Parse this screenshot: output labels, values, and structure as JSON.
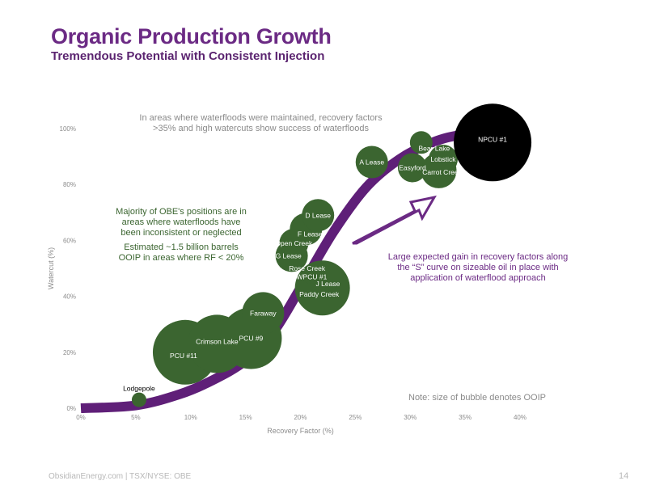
{
  "header": {
    "title": "Organic Production Growth",
    "subtitle": "Tremendous Potential with Consistent Injection"
  },
  "footer": {
    "text": "ObsidianEnergy.com | TSX/NYSE: OBE",
    "page": "14"
  },
  "colors": {
    "brand_purple": "#6b2a84",
    "curve": "#5f1f78",
    "bubble_green": "#3b6530",
    "bubble_black": "#000000",
    "axis_text": "#8c8c8c"
  },
  "annotations": {
    "top": "In areas where waterfloods were maintained, recovery factors >35% and high watercuts show success of waterfloods",
    "left_1": "Majority of OBE's positions are in areas where waterfloods have been inconsistent or neglected",
    "left_2": "Estimated ~1.5 billion barrels OOIP in areas where RF < 20%",
    "right": "Large expected gain in recovery factors along the “S” curve on sizeable oil in place with application of waterflood approach",
    "note": "Note: size of bubble denotes OOIP"
  },
  "chart_data": {
    "type": "scatter",
    "title": "",
    "xlabel": "Recovery Factor (%)",
    "ylabel": "Watercut (%)",
    "xlim": [
      0,
      40
    ],
    "ylim": [
      0,
      100
    ],
    "x_ticks": [
      "0%",
      "5%",
      "10%",
      "15%",
      "20%",
      "25%",
      "30%",
      "35%",
      "40%"
    ],
    "y_ticks": [
      "0%",
      "20%",
      "40%",
      "60%",
      "80%",
      "100%"
    ],
    "grid": false,
    "s_curve": [
      [
        0,
        0
      ],
      [
        5,
        1
      ],
      [
        9,
        5
      ],
      [
        12,
        10
      ],
      [
        15,
        17
      ],
      [
        17.5,
        27
      ],
      [
        20,
        43
      ],
      [
        23,
        63
      ],
      [
        26,
        79
      ],
      [
        29,
        89
      ],
      [
        32,
        95
      ],
      [
        35,
        98
      ],
      [
        40,
        100
      ]
    ],
    "bubbles": [
      {
        "name": "Lodgepole",
        "x": 5.3,
        "y": 3,
        "r": 9,
        "color": "#3b6530",
        "label_dx": 0,
        "label_dy": -14,
        "label_color": "#000000"
      },
      {
        "name": "PCU #11",
        "x": 9.5,
        "y": 20,
        "r": 40,
        "color": "#3b6530",
        "label_dx": -2,
        "label_dy": 4,
        "label_color": "#ffffff"
      },
      {
        "name": "Crimson Lake",
        "x": 12.4,
        "y": 23,
        "r": 36,
        "color": "#3b6530",
        "label_dx": 0,
        "label_dy": -3,
        "label_color": "#ffffff"
      },
      {
        "name": "PCU #9",
        "x": 15.5,
        "y": 25,
        "r": 38,
        "color": "#3b6530",
        "label_dx": 0,
        "label_dy": 0,
        "label_color": "#ffffff"
      },
      {
        "name": "Faraway",
        "x": 16.6,
        "y": 34,
        "r": 26,
        "color": "#3b6530",
        "label_dx": 0,
        "label_dy": 0,
        "label_color": "#ffffff"
      },
      {
        "name": "Paddy Creek",
        "x": 22,
        "y": 43,
        "r": 34,
        "color": "#3b6530",
        "label_dx": -4,
        "label_dy": 8,
        "label_color": "#ffffff"
      },
      {
        "name": "J Lease",
        "x": 22.5,
        "y": 44.5,
        "r": 0,
        "color": "#3b6530",
        "label_dx": 0,
        "label_dy": 0,
        "label_color": "#ffffff"
      },
      {
        "name": "NWPCU #1",
        "x": 20.8,
        "y": 47,
        "r": 8,
        "color": "#3b6530",
        "label_dx": 0,
        "label_dy": 0,
        "label_color": "#ffffff"
      },
      {
        "name": "Rose Creek",
        "x": 20.6,
        "y": 50,
        "r": 0,
        "color": "#3b6530",
        "label_dx": 0,
        "label_dy": 0,
        "label_color": "#ffffff"
      },
      {
        "name": "G Lease",
        "x": 19.2,
        "y": 54.5,
        "r": 20,
        "color": "#3b6530",
        "label_dx": -4,
        "label_dy": 0,
        "label_color": "#ffffff"
      },
      {
        "name": "Open Creek",
        "x": 19.4,
        "y": 59,
        "r": 18,
        "color": "#3b6530",
        "label_dx": 0,
        "label_dy": 0,
        "label_color": "#ffffff"
      },
      {
        "name": "F Lease",
        "x": 20.5,
        "y": 64,
        "r": 20,
        "color": "#3b6530",
        "label_dx": 5,
        "label_dy": 6,
        "label_color": "#ffffff"
      },
      {
        "name": "D Lease",
        "x": 21.6,
        "y": 69,
        "r": 20,
        "color": "#3b6530",
        "label_dx": 0,
        "label_dy": 0,
        "label_color": "#ffffff"
      },
      {
        "name": "A Lease",
        "x": 26.5,
        "y": 88,
        "r": 20,
        "color": "#3b6530",
        "label_dx": 0,
        "label_dy": 0,
        "label_color": "#ffffff"
      },
      {
        "name": "Bear Lake",
        "x": 31,
        "y": 95,
        "r": 14,
        "color": "#3b6530",
        "label_dx": 16,
        "label_dy": 7,
        "label_color": "#ffffff"
      },
      {
        "name": "Easyford",
        "x": 30.2,
        "y": 86,
        "r": 18,
        "color": "#3b6530",
        "label_dx": 0,
        "label_dy": 0,
        "label_color": "#ffffff"
      },
      {
        "name": "Lobstick",
        "x": 33,
        "y": 89,
        "r": 18,
        "color": "#3b6530",
        "label_dx": 0,
        "label_dy": 0,
        "label_color": "#ffffff"
      },
      {
        "name": "Carrot Creek",
        "x": 32.6,
        "y": 85,
        "r": 22,
        "color": "#3b6530",
        "label_dx": 4,
        "label_dy": 2,
        "label_color": "#ffffff"
      },
      {
        "name": "NPCU #1",
        "x": 37.5,
        "y": 95,
        "r": 48,
        "color": "#000000",
        "label_dx": 0,
        "label_dy": -4,
        "label_color": "#ffffff"
      }
    ]
  }
}
